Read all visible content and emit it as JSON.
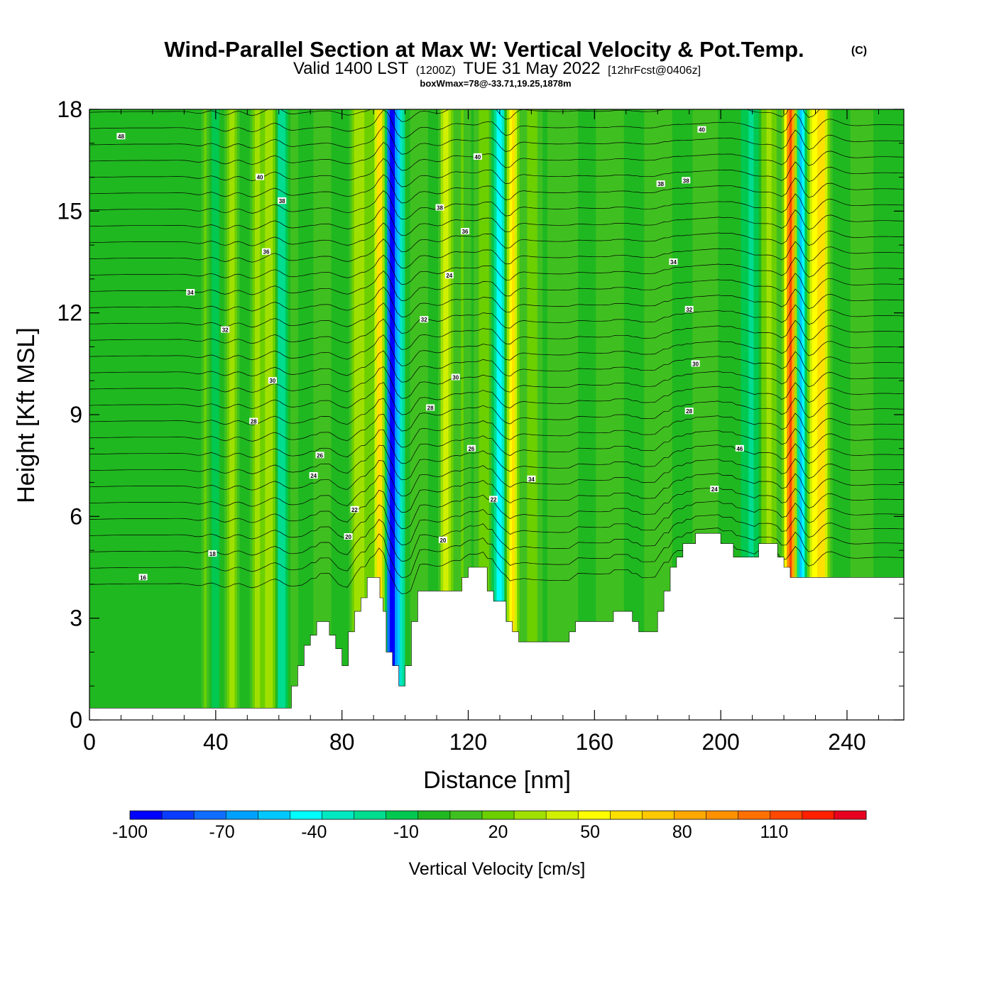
{
  "header": {
    "title": "Wind-Parallel Section at Max W: Vertical Velocity & Pot.Temp.",
    "copyright": "(C)",
    "valid_prefix": "Valid 1400 LST",
    "valid_zulu": "(1200Z)",
    "valid_date": "TUE 31 May 2022",
    "forecast": "[12hrFcst@0406z]",
    "box_info": "boxWmax=78@-33.71,19.25,1878m"
  },
  "chart_data": {
    "type": "heatmap",
    "title": "Wind-Parallel Section at Max W: Vertical Velocity & Pot.Temp.",
    "xlabel": "Distance [nm]",
    "ylabel": "Height [Kft MSL]",
    "xlim": [
      0,
      258
    ],
    "ylim": [
      0,
      18
    ],
    "x_ticks": [
      0,
      40,
      80,
      120,
      160,
      200,
      240
    ],
    "y_ticks": [
      0,
      3,
      6,
      9,
      12,
      15,
      18
    ],
    "colorbar": {
      "label": "Vertical Velocity [cm/s]",
      "tick_labels": [
        "-100",
        "-70",
        "-40",
        "-10",
        "20",
        "50",
        "80",
        "110"
      ],
      "tick_values": [
        -100,
        -70,
        -40,
        -10,
        20,
        50,
        80,
        110
      ],
      "min": -100,
      "max": 130,
      "step": 10,
      "colors": [
        "#0000ff",
        "#0a3cff",
        "#0f6eff",
        "#00a0ff",
        "#00c8ff",
        "#00ffff",
        "#00e8c0",
        "#00dc90",
        "#00c850",
        "#20b820",
        "#40c020",
        "#6cd000",
        "#a0e000",
        "#d0f000",
        "#ffff00",
        "#ffe000",
        "#ffc800",
        "#ffa800",
        "#ff9000",
        "#ff7000",
        "#ff4800",
        "#ff2000",
        "#e80020"
      ]
    },
    "background_value": -5,
    "vertical_velocity_features": [
      {
        "x": 4,
        "value": 5,
        "sigma": 6
      },
      {
        "x": 38,
        "value": -15,
        "sigma": 2
      },
      {
        "x": 37,
        "value": 30,
        "sigma": 1.2
      },
      {
        "x": 45,
        "value": 30,
        "sigma": 1.2
      },
      {
        "x": 53,
        "value": 30,
        "sigma": 1.2
      },
      {
        "x": 57,
        "value": 35,
        "sigma": 1.3
      },
      {
        "x": 61,
        "value": -25,
        "sigma": 1.3
      },
      {
        "x": 64,
        "value": 10,
        "sigma": 2
      },
      {
        "x": 74,
        "value": 10,
        "sigma": 2.5
      },
      {
        "x": 85,
        "value": 30,
        "sigma": 1.5
      },
      {
        "x": 88,
        "value": 15,
        "sigma": 1.5
      },
      {
        "x": 92,
        "value": 60,
        "sigma": 1.3
      },
      {
        "x": 95.5,
        "value": -95,
        "sigma": 1.1
      },
      {
        "x": 98,
        "value": -40,
        "sigma": 1.2
      },
      {
        "x": 104,
        "value": 15,
        "sigma": 2
      },
      {
        "x": 113,
        "value": 40,
        "sigma": 1.4
      },
      {
        "x": 118,
        "value": 15,
        "sigma": 2
      },
      {
        "x": 125,
        "value": 25,
        "sigma": 1.5
      },
      {
        "x": 130,
        "value": -40,
        "sigma": 1.3
      },
      {
        "x": 134,
        "value": 60,
        "sigma": 1.3
      },
      {
        "x": 140,
        "value": 20,
        "sigma": 2
      },
      {
        "x": 150,
        "value": 15,
        "sigma": 3
      },
      {
        "x": 165,
        "value": 15,
        "sigma": 3
      },
      {
        "x": 180,
        "value": 15,
        "sigma": 3
      },
      {
        "x": 195,
        "value": 12,
        "sigma": 3
      },
      {
        "x": 210,
        "value": -20,
        "sigma": 2
      },
      {
        "x": 215,
        "value": 30,
        "sigma": 2
      },
      {
        "x": 222,
        "value": 110,
        "sigma": 1.2
      },
      {
        "x": 225.5,
        "value": -50,
        "sigma": 1.0
      },
      {
        "x": 229,
        "value": 35,
        "sigma": 1.3
      },
      {
        "x": 232,
        "value": 60,
        "sigma": 1.5
      },
      {
        "x": 245,
        "value": 10,
        "sigma": 3
      }
    ],
    "terrain_top_kft": [
      [
        0,
        0.35
      ],
      [
        64,
        0.35
      ],
      [
        64,
        1.0
      ],
      [
        66,
        1.0
      ],
      [
        66,
        1.6
      ],
      [
        68,
        1.6
      ],
      [
        68,
        2.2
      ],
      [
        70,
        2.2
      ],
      [
        70,
        2.5
      ],
      [
        72,
        2.5
      ],
      [
        72,
        2.9
      ],
      [
        76,
        2.9
      ],
      [
        76,
        2.5
      ],
      [
        78,
        2.5
      ],
      [
        78,
        2.1
      ],
      [
        80,
        2.1
      ],
      [
        80,
        1.6
      ],
      [
        82,
        1.6
      ],
      [
        82,
        2.6
      ],
      [
        84,
        2.6
      ],
      [
        84,
        3.2
      ],
      [
        86,
        3.2
      ],
      [
        86,
        3.6
      ],
      [
        88,
        3.6
      ],
      [
        88,
        4.2
      ],
      [
        92,
        4.2
      ],
      [
        92,
        3.6
      ],
      [
        93,
        3.6
      ],
      [
        93,
        3.2
      ],
      [
        94,
        3.2
      ],
      [
        94,
        2.0
      ],
      [
        96,
        2.0
      ],
      [
        96,
        1.6
      ],
      [
        98,
        1.6
      ],
      [
        98,
        1.0
      ],
      [
        100,
        1.0
      ],
      [
        100,
        1.6
      ],
      [
        102,
        1.6
      ],
      [
        102,
        2.9
      ],
      [
        104,
        2.9
      ],
      [
        104,
        3.8
      ],
      [
        118,
        3.8
      ],
      [
        118,
        4.2
      ],
      [
        120,
        4.2
      ],
      [
        120,
        4.5
      ],
      [
        126,
        4.5
      ],
      [
        126,
        3.8
      ],
      [
        128,
        3.8
      ],
      [
        128,
        3.5
      ],
      [
        132,
        3.5
      ],
      [
        132,
        2.9
      ],
      [
        134,
        2.9
      ],
      [
        134,
        2.6
      ],
      [
        136,
        2.6
      ],
      [
        136,
        2.3
      ],
      [
        152,
        2.3
      ],
      [
        152,
        2.6
      ],
      [
        154,
        2.6
      ],
      [
        154,
        2.9
      ],
      [
        166,
        2.9
      ],
      [
        166,
        3.2
      ],
      [
        172,
        3.2
      ],
      [
        172,
        2.9
      ],
      [
        174,
        2.9
      ],
      [
        174,
        2.6
      ],
      [
        180,
        2.6
      ],
      [
        180,
        3.2
      ],
      [
        182,
        3.2
      ],
      [
        182,
        3.8
      ],
      [
        184,
        3.8
      ],
      [
        184,
        4.5
      ],
      [
        186,
        4.5
      ],
      [
        186,
        4.8
      ],
      [
        188,
        4.8
      ],
      [
        188,
        5.2
      ],
      [
        192,
        5.2
      ],
      [
        192,
        5.5
      ],
      [
        200,
        5.5
      ],
      [
        200,
        5.2
      ],
      [
        204,
        5.2
      ],
      [
        204,
        4.8
      ],
      [
        212,
        4.8
      ],
      [
        212,
        5.2
      ],
      [
        218,
        5.2
      ],
      [
        218,
        4.8
      ],
      [
        220,
        4.8
      ],
      [
        220,
        4.5
      ],
      [
        222,
        4.5
      ],
      [
        222,
        4.2
      ],
      [
        258,
        4.2
      ]
    ],
    "theta_contour_labels": [
      {
        "x": 10,
        "y": 17.2,
        "text": "48"
      },
      {
        "x": 54,
        "y": 16.0,
        "text": "40"
      },
      {
        "x": 61,
        "y": 15.3,
        "text": "38"
      },
      {
        "x": 56,
        "y": 13.8,
        "text": "36"
      },
      {
        "x": 32,
        "y": 12.6,
        "text": "34"
      },
      {
        "x": 43,
        "y": 11.5,
        "text": "32"
      },
      {
        "x": 58,
        "y": 10.0,
        "text": "30"
      },
      {
        "x": 52,
        "y": 8.8,
        "text": "28"
      },
      {
        "x": 73,
        "y": 7.8,
        "text": "26"
      },
      {
        "x": 71,
        "y": 7.2,
        "text": "24"
      },
      {
        "x": 84,
        "y": 6.2,
        "text": "22"
      },
      {
        "x": 82,
        "y": 5.4,
        "text": "20"
      },
      {
        "x": 39,
        "y": 4.9,
        "text": "18"
      },
      {
        "x": 17,
        "y": 4.2,
        "text": "16"
      },
      {
        "x": 123,
        "y": 16.6,
        "text": "40"
      },
      {
        "x": 111,
        "y": 15.1,
        "text": "38"
      },
      {
        "x": 119,
        "y": 14.4,
        "text": "36"
      },
      {
        "x": 114,
        "y": 13.1,
        "text": "24"
      },
      {
        "x": 106,
        "y": 11.8,
        "text": "32"
      },
      {
        "x": 116,
        "y": 10.1,
        "text": "30"
      },
      {
        "x": 108,
        "y": 9.2,
        "text": "28"
      },
      {
        "x": 121,
        "y": 8.0,
        "text": "26"
      },
      {
        "x": 140,
        "y": 7.1,
        "text": "34"
      },
      {
        "x": 128,
        "y": 6.5,
        "text": "22"
      },
      {
        "x": 112,
        "y": 5.3,
        "text": "20"
      },
      {
        "x": 194,
        "y": 17.4,
        "text": "40"
      },
      {
        "x": 189,
        "y": 15.9,
        "text": "38"
      },
      {
        "x": 181,
        "y": 15.8,
        "text": "38"
      },
      {
        "x": 185,
        "y": 13.5,
        "text": "34"
      },
      {
        "x": 190,
        "y": 12.1,
        "text": "32"
      },
      {
        "x": 192,
        "y": 10.5,
        "text": "30"
      },
      {
        "x": 190,
        "y": 9.1,
        "text": "28"
      },
      {
        "x": 206,
        "y": 8.0,
        "text": "46"
      },
      {
        "x": 198,
        "y": 6.8,
        "text": "24"
      }
    ]
  }
}
